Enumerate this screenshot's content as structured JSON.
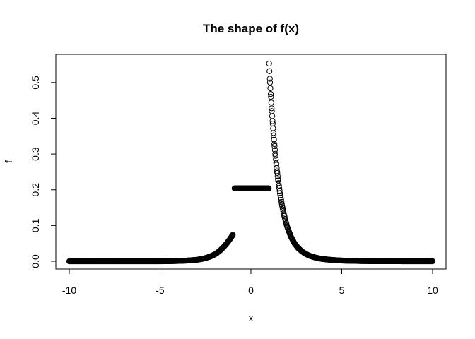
{
  "chart_data": {
    "type": "scatter",
    "title": "The shape of f(x)",
    "xlabel": "x",
    "ylabel": "f",
    "xlim": [
      -10,
      10
    ],
    "ylim": [
      0,
      0.555
    ],
    "x_ticks": [
      -10,
      -5,
      0,
      5,
      10
    ],
    "y_ticks": [
      0.0,
      0.1,
      0.2,
      0.3,
      0.4,
      0.5
    ],
    "x_tick_labels": [
      "-10",
      "-5",
      "0",
      "5",
      "10"
    ],
    "y_tick_labels": [
      "0.0",
      "0.1",
      "0.2",
      "0.3",
      "0.4",
      "0.5"
    ],
    "marker": "open-circle",
    "grid": false,
    "series": [
      {
        "x": [
          -10.0,
          -9.0,
          -8.0,
          -7.0,
          -6.0,
          -5.0,
          -4.5,
          -4.0,
          -3.5,
          -3.0,
          -2.75,
          -2.5,
          -2.25,
          -2.0,
          -1.9,
          -1.8,
          -1.7,
          -1.6,
          -1.5,
          -1.4,
          -1.3,
          -1.2,
          -1.1,
          -1.0,
          -0.9,
          -0.6,
          -0.3,
          0.0,
          0.3,
          0.6,
          0.9,
          1.0,
          1.05,
          1.1,
          1.15,
          1.2,
          1.25,
          1.3,
          1.35,
          1.4,
          1.45,
          1.5,
          1.6,
          1.7,
          1.8,
          1.9,
          2.0,
          2.2,
          2.4,
          2.6,
          2.8,
          3.0,
          3.25,
          3.5,
          3.75,
          4.0,
          4.5,
          5.0,
          5.5,
          6.0,
          6.5,
          7.0,
          7.5,
          8.0,
          9.0,
          10.0
        ],
        "y": [
          0.0,
          0.0,
          0.0,
          0.0,
          0.0,
          0.0,
          0.0003,
          0.001,
          0.002,
          0.004,
          0.006,
          0.009,
          0.013,
          0.019,
          0.022,
          0.026,
          0.03,
          0.035,
          0.04,
          0.046,
          0.052,
          0.059,
          0.066,
          0.074,
          0.204,
          0.204,
          0.204,
          0.204,
          0.204,
          0.204,
          0.204,
          0.553,
          0.5,
          0.46,
          0.42,
          0.385,
          0.352,
          0.322,
          0.295,
          0.27,
          0.247,
          0.226,
          0.19,
          0.16,
          0.135,
          0.114,
          0.096,
          0.069,
          0.05,
          0.037,
          0.028,
          0.021,
          0.015,
          0.011,
          0.008,
          0.006,
          0.0035,
          0.002,
          0.0013,
          0.0008,
          0.0005,
          0.0003,
          0.0002,
          0.0001,
          0.0,
          0.0
        ]
      }
    ]
  }
}
